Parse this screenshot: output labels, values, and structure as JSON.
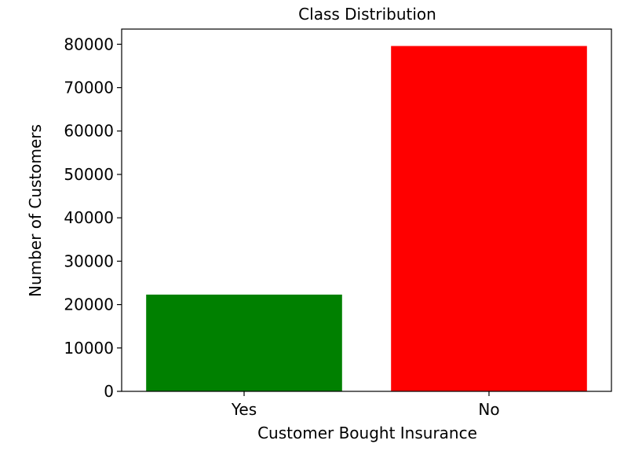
{
  "chart_data": {
    "type": "bar",
    "title": "Class Distribution",
    "xlabel": "Customer Bought Insurance",
    "ylabel": "Number of Customers",
    "categories": [
      "Yes",
      "No"
    ],
    "values": [
      22300,
      79600
    ],
    "colors": [
      "#008000",
      "#ff0000"
    ],
    "ylim": [
      0,
      83500
    ],
    "yticks": [
      0,
      10000,
      20000,
      30000,
      40000,
      50000,
      60000,
      70000,
      80000
    ],
    "grid": false,
    "legend": "none"
  }
}
